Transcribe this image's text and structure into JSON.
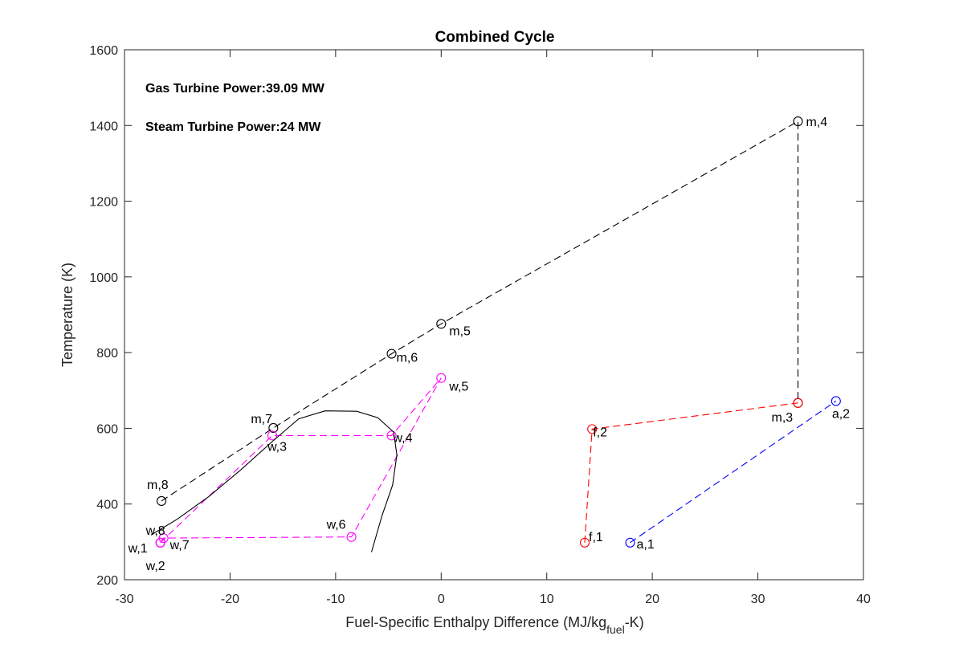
{
  "chart_data": {
    "type": "scatter",
    "title": "Combined Cycle",
    "xlabel_parts": [
      "Fuel-Specific Enthalpy Difference (MJ/kg",
      "fuel",
      "-K)"
    ],
    "ylabel": "Temperature (K)",
    "xlim": [
      -30,
      40
    ],
    "ylim": [
      200,
      1600
    ],
    "xticks": [
      -30,
      -20,
      -10,
      0,
      10,
      20,
      30,
      40
    ],
    "yticks": [
      200,
      400,
      600,
      800,
      1000,
      1200,
      1400,
      1600
    ],
    "grid": false,
    "annotations": [
      "Gas Turbine Power:39.09 MW",
      "Steam Turbine Power:24 MW"
    ],
    "series": [
      {
        "color": "#000000",
        "line": "dashed",
        "marker": "circle",
        "points": [
          {
            "x": -26.5,
            "y": 408,
            "label": "m,8"
          },
          {
            "x": -15.9,
            "y": 601,
            "label": "m,7"
          },
          {
            "x": -4.7,
            "y": 797,
            "label": "m,6"
          },
          {
            "x": 0.0,
            "y": 876,
            "label": "m,5"
          },
          {
            "x": 33.8,
            "y": 1411,
            "label": "m,4"
          },
          {
            "x": 33.8,
            "y": 667,
            "label": "m,3"
          }
        ]
      },
      {
        "color": "#ff00ff",
        "line": "dashed",
        "marker": "circle",
        "points": [
          {
            "x": -26.6,
            "y": 298,
            "label": "w,1"
          },
          {
            "x": -26.6,
            "y": 298,
            "label": "w,2"
          },
          {
            "x": -16.0,
            "y": 581,
            "label": "w,3"
          },
          {
            "x": -4.7,
            "y": 581,
            "label": "w,4"
          },
          {
            "x": 0.0,
            "y": 733,
            "label": "w,5"
          },
          {
            "x": -8.5,
            "y": 313,
            "label": "w,6"
          },
          {
            "x": -26.3,
            "y": 310,
            "label": "w,7"
          },
          {
            "x": -26.6,
            "y": 298,
            "label": "w,8"
          }
        ]
      },
      {
        "color": "#ff0000",
        "line": "dashed",
        "marker": "circle",
        "points": [
          {
            "x": 13.6,
            "y": 298,
            "label": "f,1"
          },
          {
            "x": 14.3,
            "y": 598,
            "label": "f,2"
          },
          {
            "x": 33.8,
            "y": 667,
            "label": ""
          }
        ]
      },
      {
        "color": "#0000ff",
        "line": "dashed",
        "marker": "circle",
        "points": [
          {
            "x": 17.9,
            "y": 298,
            "label": "a,1"
          },
          {
            "x": 37.4,
            "y": 672,
            "label": "a,2"
          }
        ]
      },
      {
        "color": "#000000",
        "line": "solid",
        "marker": "none",
        "points": [
          {
            "x": -27.5,
            "y": 318
          },
          {
            "x": -25.0,
            "y": 360
          },
          {
            "x": -22.0,
            "y": 420
          },
          {
            "x": -19.0,
            "y": 490
          },
          {
            "x": -16.0,
            "y": 565
          },
          {
            "x": -13.5,
            "y": 625
          },
          {
            "x": -11.0,
            "y": 646
          },
          {
            "x": -8.0,
            "y": 645
          },
          {
            "x": -6.0,
            "y": 628
          },
          {
            "x": -4.5,
            "y": 590
          },
          {
            "x": -4.2,
            "y": 530
          },
          {
            "x": -4.6,
            "y": 450
          },
          {
            "x": -5.6,
            "y": 370
          },
          {
            "x": -6.6,
            "y": 273
          }
        ]
      }
    ]
  }
}
